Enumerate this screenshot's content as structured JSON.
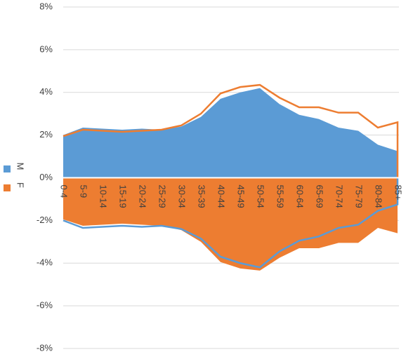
{
  "chart_data": {
    "type": "area",
    "categories": [
      "0-4",
      "5-9",
      "10-14",
      "15-19",
      "20-24",
      "25-29",
      "30-34",
      "35-39",
      "40-44",
      "45-49",
      "50-54",
      "55-59",
      "60-64",
      "65-69",
      "70-74",
      "75-79",
      "80-84",
      "85+"
    ],
    "series": [
      {
        "name": "M",
        "color": "#5b9bd5",
        "values": [
          2.0,
          2.35,
          2.3,
          2.25,
          2.3,
          2.25,
          2.4,
          2.85,
          3.7,
          4.0,
          4.2,
          3.45,
          2.95,
          2.75,
          2.35,
          2.2,
          1.55,
          1.25
        ]
      },
      {
        "name": "F",
        "color": "#ed7d31",
        "values": [
          -1.95,
          -2.25,
          -2.2,
          -2.15,
          -2.2,
          -2.25,
          -2.45,
          -3.0,
          -3.95,
          -4.25,
          -4.35,
          -3.75,
          -3.3,
          -3.3,
          -3.05,
          -3.05,
          -2.35,
          -2.6
        ]
      }
    ],
    "mirror_outline": true,
    "ylim": [
      -8,
      8
    ],
    "yticks": [
      {
        "value": -8,
        "label": "-8%"
      },
      {
        "value": -6,
        "label": "-6%"
      },
      {
        "value": -4,
        "label": "-4%"
      },
      {
        "value": -2,
        "label": "-2%"
      },
      {
        "value": 0,
        "label": "0%"
      },
      {
        "value": 2,
        "label": "2%"
      },
      {
        "value": 4,
        "label": "4%"
      },
      {
        "value": 6,
        "label": "6%"
      },
      {
        "value": 8,
        "label": "8%"
      }
    ],
    "grid": true,
    "legend": "left"
  }
}
